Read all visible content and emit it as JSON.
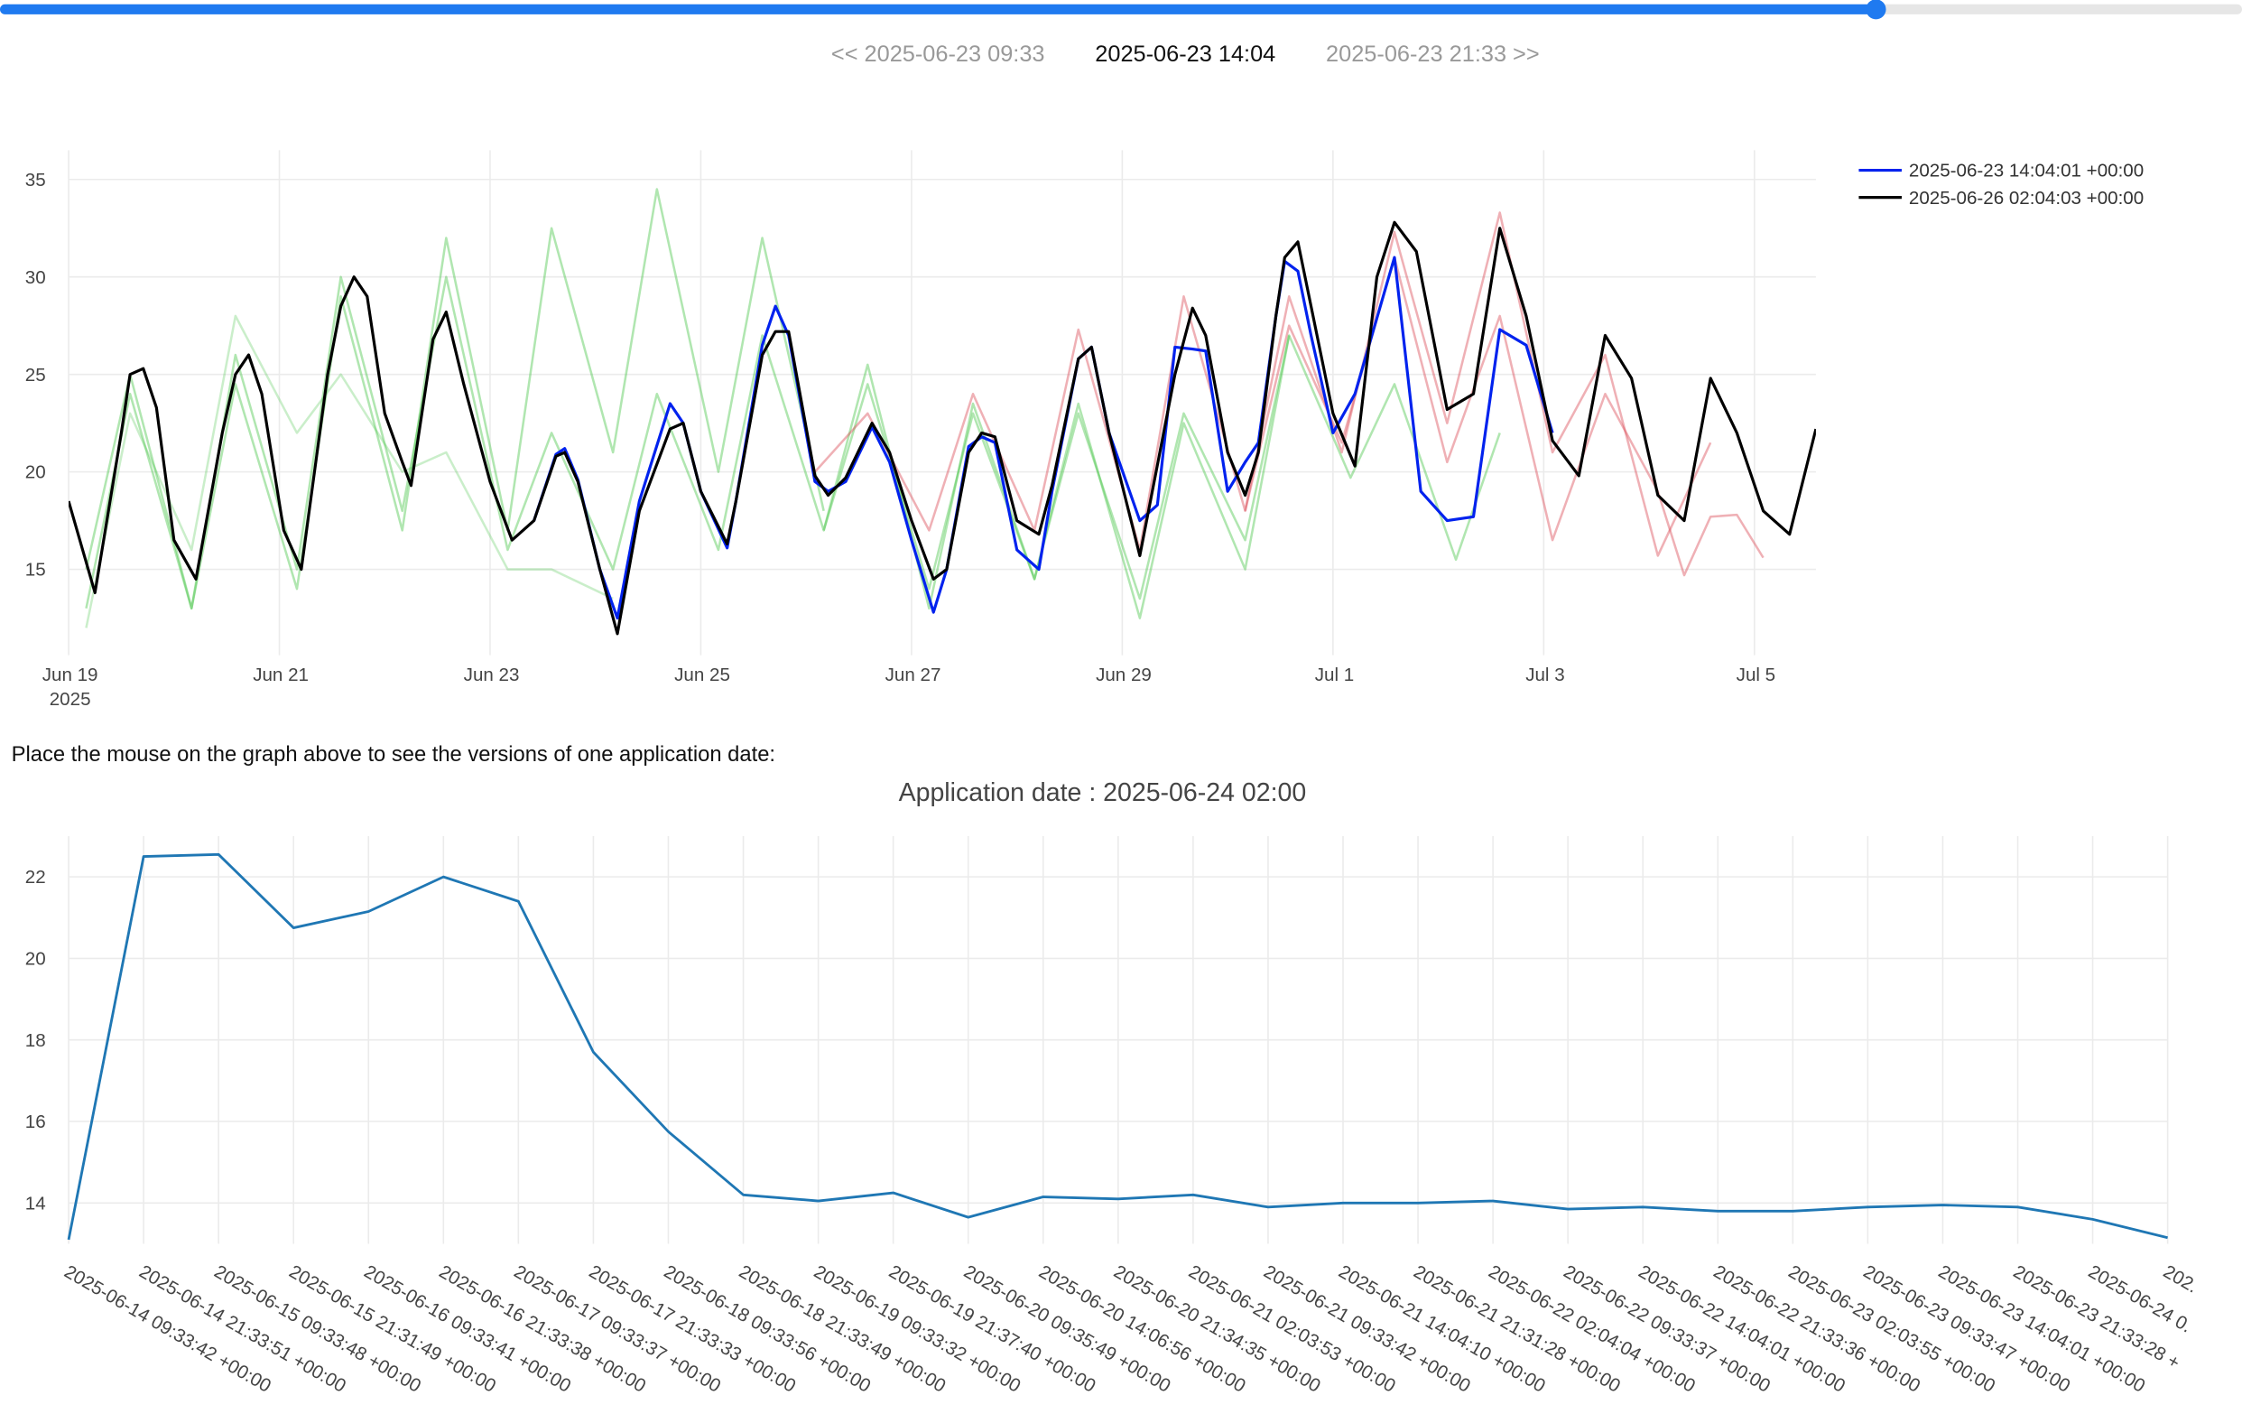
{
  "navigation": {
    "previous": "<< 2025-06-23 09:33",
    "current": "2025-06-23 14:04",
    "next": "2025-06-23 21:33 >>"
  },
  "instruction": "Place the mouse on the graph above to see the versions of one application date:",
  "chart_data": [
    {
      "type": "line",
      "xlim": [
        "2025-06-19 00:00",
        "2025-07-05 14:00"
      ],
      "ylim": [
        10.6,
        36.5
      ],
      "yticks": [
        15,
        20,
        25,
        30,
        35
      ],
      "xticks": [
        {
          "value": "2025-06-19 00:00",
          "label": "Jun 19"
        },
        {
          "value": "2025-06-21 00:00",
          "label": "Jun 21"
        },
        {
          "value": "2025-06-23 00:00",
          "label": "Jun 23"
        },
        {
          "value": "2025-06-25 00:00",
          "label": "Jun 25"
        },
        {
          "value": "2025-06-27 00:00",
          "label": "Jun 27"
        },
        {
          "value": "2025-06-29 00:00",
          "label": "Jun 29"
        },
        {
          "value": "2025-07-01 00:00",
          "label": "Jul 1"
        },
        {
          "value": "2025-07-03 00:00",
          "label": "Jul 3"
        },
        {
          "value": "2025-07-05 00:00",
          "label": "Jul 5"
        }
      ],
      "x_year_label": "2025",
      "grid": true,
      "legend": "top-right",
      "series": [
        {
          "color": "rgba(80,200,80,0.45)",
          "x": [
            "2025-06-19 04:00",
            "2025-06-19 14:00",
            "2025-06-20 04:00",
            "2025-06-20 14:00",
            "2025-06-21 04:00",
            "2025-06-21 14:00",
            "2025-06-22 04:00",
            "2025-06-22 14:00",
            "2025-06-23 04:00",
            "2025-06-23 14:00",
            "2025-06-24 04:00",
            "2025-06-24 14:00",
            "2025-06-25 04:00",
            "2025-06-25 14:00",
            "2025-06-26 04:00"
          ],
          "values": [
            13,
            24,
            13,
            24.5,
            14,
            29,
            17,
            32,
            17,
            32.5,
            21,
            34.5,
            20,
            32,
            18
          ]
        },
        {
          "color": "rgba(80,200,80,0.45)",
          "x": [
            "2025-06-19 04:00",
            "2025-06-19 14:00",
            "2025-06-20 04:00",
            "2025-06-20 14:00",
            "2025-06-21 04:00",
            "2025-06-21 14:00",
            "2025-06-22 04:00",
            "2025-06-22 14:00",
            "2025-06-23 04:00",
            "2025-06-23 14:00",
            "2025-06-24 04:00",
            "2025-06-24 14:00",
            "2025-06-25 04:00",
            "2025-06-25 14:00",
            "2025-06-26 04:00",
            "2025-06-26 14:00",
            "2025-06-27 04:00",
            "2025-06-27 14:00",
            "2025-06-28 04:00",
            "2025-06-28 14:00",
            "2025-06-29 04:00",
            "2025-06-29 14:00",
            "2025-06-30 04:00",
            "2025-06-30 14:00"
          ],
          "values": [
            15,
            25,
            13,
            26,
            15,
            30,
            18,
            30,
            16,
            22,
            15,
            24,
            16,
            27,
            17,
            25.5,
            13,
            23.5,
            14.5,
            23,
            13.5,
            23,
            16.5,
            27
          ]
        },
        {
          "color": "rgba(80,200,80,0.3)",
          "x": [
            "2025-06-19 04:00",
            "2025-06-19 14:00",
            "2025-06-20 04:00",
            "2025-06-20 14:00",
            "2025-06-21 04:00",
            "2025-06-21 14:00",
            "2025-06-22 04:00",
            "2025-06-22 14:00",
            "2025-06-23 04:00",
            "2025-06-23 14:00",
            "2025-06-24 04:00"
          ],
          "values": [
            12,
            23,
            16,
            28,
            22,
            25,
            20,
            21,
            15,
            15,
            13.5
          ]
        },
        {
          "color": "rgba(80,200,80,0.45)",
          "x": [
            "2025-06-26 04:00",
            "2025-06-26 14:00",
            "2025-06-27 04:00",
            "2025-06-27 14:00",
            "2025-06-28 04:00",
            "2025-06-28 14:00",
            "2025-06-29 04:00",
            "2025-06-29 14:00",
            "2025-06-30 04:00",
            "2025-06-30 14:00",
            "2025-07-01 04:00",
            "2025-07-01 14:00",
            "2025-07-02 04:00",
            "2025-07-02 14:00"
          ],
          "values": [
            17,
            24.5,
            14,
            23,
            14.5,
            23.5,
            12.5,
            22.5,
            15,
            27,
            19.7,
            24.5,
            15.5,
            22
          ]
        },
        {
          "color": "rgba(220,80,90,0.45)",
          "x": [
            "2025-06-26 02:00",
            "2025-06-26 14:00",
            "2025-06-27 04:00",
            "2025-06-27 14:00",
            "2025-06-28 04:00",
            "2025-06-28 14:00",
            "2025-06-29 04:00",
            "2025-06-29 14:00",
            "2025-06-30 04:00",
            "2025-06-30 14:00",
            "2025-07-01 02:00",
            "2025-07-01 14:00",
            "2025-07-02 02:00",
            "2025-07-02 14:00",
            "2025-07-03 02:00",
            "2025-07-03 14:00",
            "2025-07-04 02:00",
            "2025-07-04 14:00"
          ],
          "values": [
            20,
            23,
            17,
            24,
            17,
            27.3,
            16,
            29,
            18,
            29,
            21,
            32.3,
            22.5,
            33.3,
            21,
            26,
            15.7,
            21.5
          ]
        },
        {
          "color": "rgba(220,80,90,0.45)",
          "x": [
            "2025-06-30 04:00",
            "2025-06-30 14:00",
            "2025-07-01 02:00",
            "2025-07-01 14:00",
            "2025-07-02 02:00",
            "2025-07-02 14:00",
            "2025-07-03 02:00",
            "2025-07-03 14:00",
            "2025-07-04 02:00",
            "2025-07-04 08:00",
            "2025-07-04 14:00",
            "2025-07-04 20:00",
            "2025-07-05 02:00"
          ],
          "values": [
            18,
            27.5,
            21.5,
            31,
            20.5,
            28,
            16.5,
            24,
            19,
            14.7,
            17.7,
            17.8,
            15.6
          ]
        },
        {
          "name": "2025-06-23 14:04:01 +00:00",
          "color": "#0022ee",
          "x": [
            "2025-06-23 10:00",
            "2025-06-23 15:00",
            "2025-06-23 17:00",
            "2025-06-23 20:00",
            "2025-06-24 01:00",
            "2025-06-24 05:00",
            "2025-06-24 10:00",
            "2025-06-24 17:00",
            "2025-06-24 20:00",
            "2025-06-25 00:00",
            "2025-06-25 06:00",
            "2025-06-25 08:00",
            "2025-06-25 14:00",
            "2025-06-25 17:00",
            "2025-06-25 20:00",
            "2025-06-26 02:00",
            "2025-06-26 05:00",
            "2025-06-26 09:00",
            "2025-06-26 15:00",
            "2025-06-26 19:00",
            "2025-06-27 00:00",
            "2025-06-27 05:00",
            "2025-06-27 08:00",
            "2025-06-27 13:00",
            "2025-06-27 16:00",
            "2025-06-27 19:00",
            "2025-06-28 00:00",
            "2025-06-28 05:00",
            "2025-06-28 08:00",
            "2025-06-28 14:00",
            "2025-06-28 17:00",
            "2025-06-28 21:00",
            "2025-06-29 04:00",
            "2025-06-29 08:00",
            "2025-06-29 12:00",
            "2025-06-29 16:00",
            "2025-06-29 19:00",
            "2025-06-30 00:00",
            "2025-06-30 04:00",
            "2025-06-30 07:00",
            "2025-06-30 11:00",
            "2025-06-30 13:00",
            "2025-06-30 16:00",
            "2025-06-30 19:00",
            "2025-07-01 00:00",
            "2025-07-01 05:00",
            "2025-07-01 14:00",
            "2025-07-01 20:00",
            "2025-07-02 02:00",
            "2025-07-02 08:00",
            "2025-07-02 14:00",
            "2025-07-02 20:00",
            "2025-07-03 02:00"
          ],
          "values": [
            17.5,
            20.9,
            21.2,
            19.6,
            15,
            12.5,
            18.5,
            23.5,
            22.5,
            19,
            16.1,
            18.5,
            26.5,
            28.5,
            27,
            19.5,
            19,
            19.5,
            22.3,
            20.5,
            16.5,
            12.8,
            15,
            21.3,
            21.8,
            21.5,
            16,
            15,
            19,
            25.8,
            26.4,
            22,
            17.5,
            18.3,
            26.4,
            26.3,
            26.2,
            19,
            20.5,
            21.5,
            28,
            30.8,
            30.3,
            27,
            22,
            24,
            31,
            19,
            17.5,
            17.7,
            27.3,
            26.5,
            22
          ]
        },
        {
          "name": "2025-06-26 02:04:03 +00:00",
          "color": "#000000",
          "x": [
            "2025-06-19 00:00",
            "2025-06-19 06:00",
            "2025-06-19 12:00",
            "2025-06-19 14:00",
            "2025-06-19 17:00",
            "2025-06-19 20:00",
            "2025-06-20 00:00",
            "2025-06-20 05:00",
            "2025-06-20 11:00",
            "2025-06-20 14:00",
            "2025-06-20 17:00",
            "2025-06-20 20:00",
            "2025-06-21 01:00",
            "2025-06-21 05:00",
            "2025-06-21 11:00",
            "2025-06-21 14:00",
            "2025-06-21 17:00",
            "2025-06-21 20:00",
            "2025-06-22 00:00",
            "2025-06-22 04:00",
            "2025-06-22 06:00",
            "2025-06-22 11:00",
            "2025-06-22 14:00",
            "2025-06-22 18:00",
            "2025-06-23 00:00",
            "2025-06-23 05:00",
            "2025-06-23 10:00",
            "2025-06-23 15:00",
            "2025-06-23 17:00",
            "2025-06-23 20:00",
            "2025-06-24 01:00",
            "2025-06-24 05:00",
            "2025-06-24 10:00",
            "2025-06-24 17:00",
            "2025-06-24 20:00",
            "2025-06-25 00:00",
            "2025-06-25 06:00",
            "2025-06-25 08:00",
            "2025-06-25 14:00",
            "2025-06-25 17:00",
            "2025-06-25 20:00",
            "2025-06-26 02:00",
            "2025-06-26 05:00",
            "2025-06-26 09:00",
            "2025-06-26 15:00",
            "2025-06-26 19:00",
            "2025-06-27 00:00",
            "2025-06-27 05:00",
            "2025-06-27 08:00",
            "2025-06-27 13:00",
            "2025-06-27 16:00",
            "2025-06-27 19:00",
            "2025-06-28 00:00",
            "2025-06-28 05:00",
            "2025-06-28 08:00",
            "2025-06-28 14:00",
            "2025-06-28 17:00",
            "2025-06-28 21:00",
            "2025-06-29 04:00",
            "2025-06-29 12:00",
            "2025-06-29 16:00",
            "2025-06-29 19:00",
            "2025-06-30 00:00",
            "2025-06-30 04:00",
            "2025-06-30 07:00",
            "2025-06-30 11:00",
            "2025-06-30 13:00",
            "2025-06-30 16:00",
            "2025-06-30 19:00",
            "2025-07-01 00:00",
            "2025-07-01 05:00",
            "2025-07-01 10:00",
            "2025-07-01 14:00",
            "2025-07-01 19:00",
            "2025-07-02 02:00",
            "2025-07-02 08:00",
            "2025-07-02 14:00",
            "2025-07-02 20:00",
            "2025-07-03 02:00",
            "2025-07-03 08:00",
            "2025-07-03 14:00",
            "2025-07-03 20:00",
            "2025-07-04 02:00",
            "2025-07-04 08:00",
            "2025-07-04 14:00",
            "2025-07-04 20:00",
            "2025-07-05 02:00",
            "2025-07-05 08:00",
            "2025-07-05 14:00"
          ],
          "values": [
            18.5,
            13.8,
            22,
            25,
            25.3,
            23.3,
            16.5,
            14.5,
            22,
            25,
            26,
            24,
            17,
            15,
            25,
            28.5,
            30,
            29,
            23,
            20.5,
            19.3,
            26.8,
            28.2,
            24.5,
            19.5,
            16.5,
            17.5,
            20.8,
            21,
            19.5,
            15,
            11.7,
            18,
            22.2,
            22.5,
            19,
            16.3,
            18.5,
            26,
            27.2,
            27.2,
            19.8,
            18.8,
            19.7,
            22.5,
            21,
            17.5,
            14.5,
            15,
            21,
            22,
            21.8,
            17.5,
            16.8,
            19.3,
            25.8,
            26.4,
            22,
            15.7,
            25,
            28.4,
            27,
            21,
            18.8,
            21,
            28,
            31,
            31.8,
            28.5,
            23,
            20.3,
            30,
            32.8,
            31.3,
            23.2,
            24,
            32.5,
            28,
            21.6,
            19.8,
            27,
            24.8,
            18.8,
            17.5,
            24.8,
            22,
            18,
            16.8,
            22.2
          ]
        }
      ]
    },
    {
      "type": "line",
      "title": "Application date : 2025-06-24 02:00",
      "categories": [
        "2025-06-14 09:33:42 +00:00",
        "2025-06-14 21:33:51 +00:00",
        "2025-06-15 09:33:48 +00:00",
        "2025-06-15 21:31:49 +00:00",
        "2025-06-16 09:33:41 +00:00",
        "2025-06-16 21:33:38 +00:00",
        "2025-06-17 09:33:37 +00:00",
        "2025-06-17 21:33:33 +00:00",
        "2025-06-18 09:33:56 +00:00",
        "2025-06-18 21:33:49 +00:00",
        "2025-06-19 09:33:32 +00:00",
        "2025-06-19 21:37:40 +00:00",
        "2025-06-20 09:35:49 +00:00",
        "2025-06-20 14:06:56 +00:00",
        "2025-06-20 21:34:35 +00:00",
        "2025-06-21 02:03:53 +00:00",
        "2025-06-21 09:33:42 +00:00",
        "2025-06-21 14:04:10 +00:00",
        "2025-06-21 21:31:28 +00:00",
        "2025-06-22 02:04:04 +00:00",
        "2025-06-22 09:33:37 +00:00",
        "2025-06-22 14:04:01 +00:00",
        "2025-06-22 21:33:36 +00:00",
        "2025-06-23 02:03:55 +00:00",
        "2025-06-23 09:33:47 +00:00",
        "2025-06-23 14:04:01 +00:00",
        "2025-06-23 21:33:28 +",
        "2025-06-24 0.",
        "202."
      ],
      "series": [
        {
          "color": "#1f77b4",
          "values": [
            13.1,
            22.5,
            22.55,
            20.75,
            21.15,
            22,
            21.4,
            17.7,
            15.75,
            14.2,
            14.05,
            14.25,
            13.65,
            14.15,
            14.1,
            14.2,
            13.9,
            14,
            14,
            14.05,
            13.85,
            13.9,
            13.8,
            13.8,
            13.9,
            13.95,
            13.9,
            13.6,
            13.15
          ]
        }
      ],
      "ylim": [
        13,
        23
      ],
      "yticks": [
        14,
        16,
        18,
        20,
        22
      ],
      "grid": true
    }
  ]
}
